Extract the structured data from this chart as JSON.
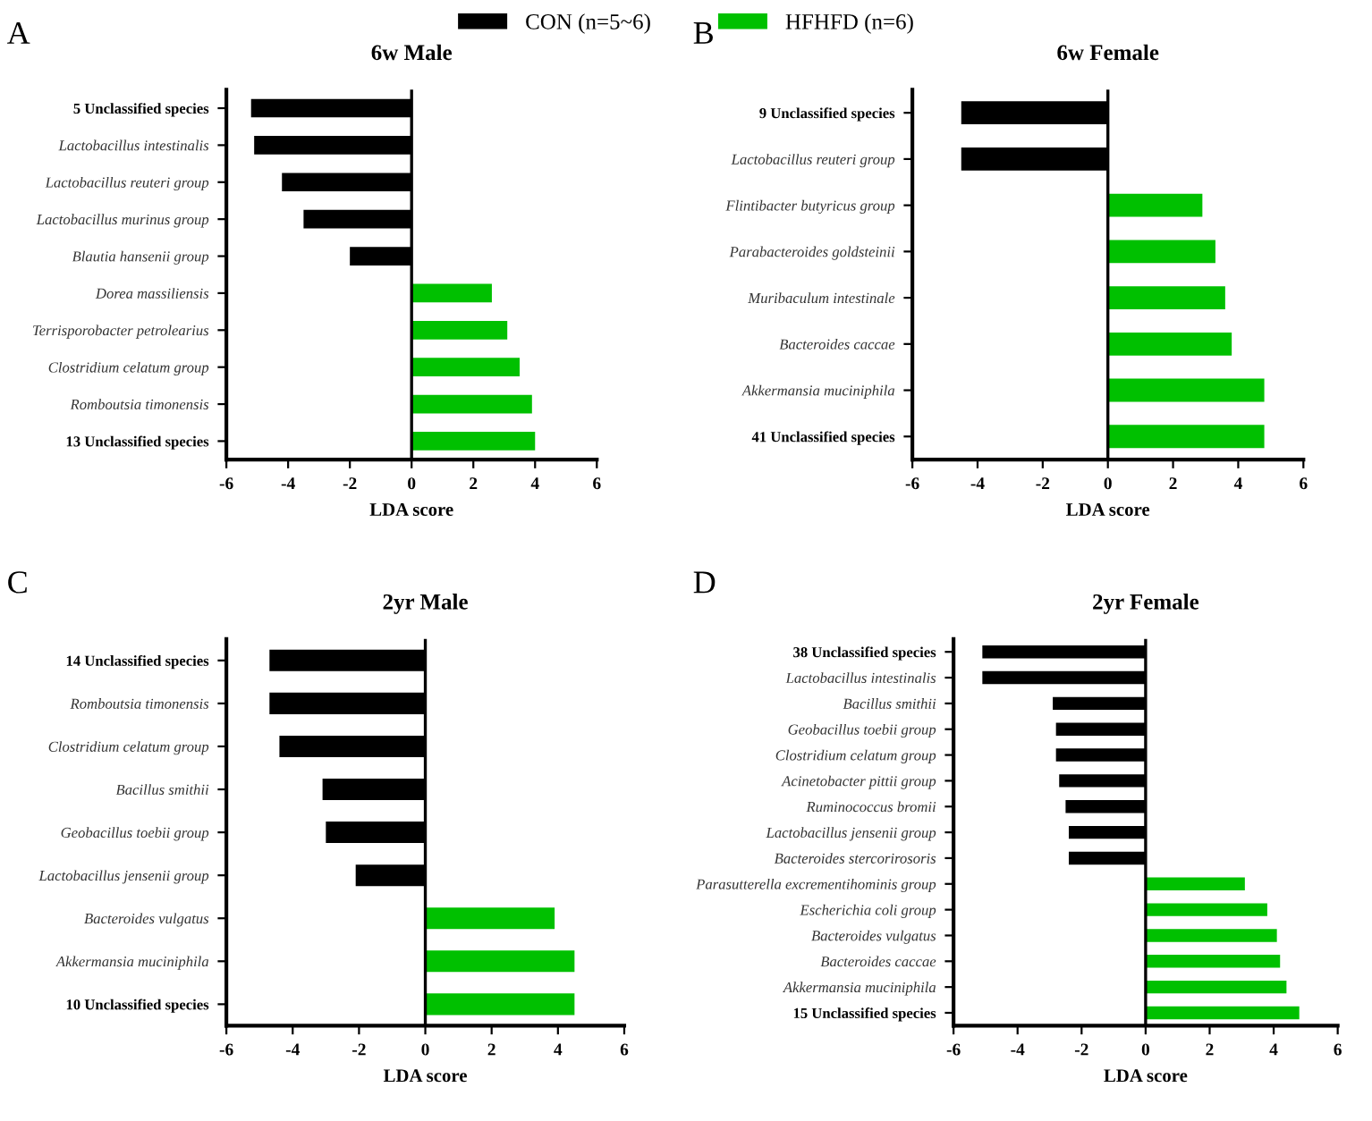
{
  "chart_data": [
    {
      "type": "bar",
      "orientation": "horizontal",
      "title": "6w Male",
      "xlabel": "LDA score",
      "annotations": [
        "A"
      ],
      "legend": "top",
      "xlim": [
        -6,
        6
      ],
      "xticks": [
        -6,
        -4,
        -2,
        0,
        2,
        4,
        6
      ],
      "grid": false,
      "ref_lines": [
        {
          "axis": "x",
          "value": 0,
          "color": "#000000"
        }
      ],
      "categories": [
        "5 Unclassified species",
        "Lactobacillus intestinalis",
        "Lactobacillus reuteri group",
        "Lactobacillus murinus group",
        "Blautia hansenii group",
        "Dorea massiliensis",
        "Terrisporobacter petrolearius",
        "Clostridium celatum group",
        "Romboutsia timonensis",
        "13 Unclassified species"
      ],
      "series": [
        {
          "name": "CON (n=5~6)",
          "color": "#000000",
          "values": [
            -5.2,
            -5.1,
            -4.2,
            -3.5,
            -2.0,
            null,
            null,
            null,
            null,
            null
          ]
        },
        {
          "name": "HFHFD (n=6)",
          "color": "#00c000",
          "values": [
            null,
            null,
            null,
            null,
            null,
            2.6,
            3.1,
            3.5,
            3.9,
            4.0
          ]
        }
      ]
    },
    {
      "type": "bar",
      "orientation": "horizontal",
      "title": "6w Female",
      "xlabel": "LDA score",
      "annotations": [
        "B"
      ],
      "xlim": [
        -6,
        6
      ],
      "xticks": [
        -6,
        -4,
        -2,
        0,
        2,
        4,
        6
      ],
      "grid": false,
      "ref_lines": [
        {
          "axis": "x",
          "value": 0,
          "color": "#000000"
        }
      ],
      "categories": [
        "9 Unclassified species",
        "Lactobacillus reuteri group",
        "Flintibacter butyricus group",
        "Parabacteroides goldsteinii",
        "Muribaculum intestinale",
        "Bacteroides caccae",
        "Akkermansia muciniphila",
        "41 Unclassified species"
      ],
      "series": [
        {
          "color": "#000000",
          "values": [
            -4.5,
            -4.5,
            null,
            null,
            null,
            null,
            null,
            null
          ]
        },
        {
          "color": "#00c000",
          "values": [
            null,
            null,
            2.9,
            3.3,
            3.6,
            3.8,
            4.8,
            4.8
          ]
        }
      ]
    },
    {
      "type": "bar",
      "orientation": "horizontal",
      "title": "2yr Male",
      "xlabel": "LDA score",
      "annotations": [
        "C"
      ],
      "xlim": [
        -6,
        6
      ],
      "xticks": [
        -6,
        -4,
        -2,
        0,
        2,
        4,
        6
      ],
      "grid": false,
      "ref_lines": [
        {
          "axis": "x",
          "value": 0,
          "color": "#000000"
        }
      ],
      "categories": [
        "14 Unclassified species",
        "Romboutsia timonensis",
        "Clostridium celatum group",
        "Bacillus smithii",
        "Geobacillus toebii group",
        "Lactobacillus jensenii group",
        "Bacteroides vulgatus",
        "Akkermansia muciniphila",
        "10 Unclassified species"
      ],
      "series": [
        {
          "color": "#000000",
          "values": [
            -4.7,
            -4.7,
            -4.4,
            -3.1,
            -3.0,
            -2.1,
            null,
            null,
            null
          ]
        },
        {
          "color": "#00c000",
          "values": [
            null,
            null,
            null,
            null,
            null,
            null,
            3.9,
            4.5,
            4.5
          ]
        }
      ]
    },
    {
      "type": "bar",
      "orientation": "horizontal",
      "title": "2yr Female",
      "xlabel": "LDA score",
      "annotations": [
        "D"
      ],
      "xlim": [
        -6,
        6
      ],
      "xticks": [
        -6,
        -4,
        -2,
        0,
        2,
        4,
        6
      ],
      "grid": false,
      "ref_lines": [
        {
          "axis": "x",
          "value": 0,
          "color": "#000000"
        }
      ],
      "categories": [
        "38 Unclassified species",
        "Lactobacillus intestinalis",
        "Bacillus smithii",
        "Geobacillus toebii group",
        "Clostridium celatum group",
        "Acinetobacter pittii group",
        "Ruminococcus bromii",
        "Lactobacillus jensenii group",
        "Bacteroides stercorirosoris",
        "Parasutterella excrementihominis group",
        "Escherichia coli group",
        "Bacteroides vulgatus",
        "Bacteroides caccae",
        "Akkermansia muciniphila",
        "15 Unclassified species"
      ],
      "series": [
        {
          "color": "#000000",
          "values": [
            -5.1,
            -5.1,
            -2.9,
            -2.8,
            -2.8,
            -2.7,
            -2.5,
            -2.4,
            -2.4,
            null,
            null,
            null,
            null,
            null,
            null
          ]
        },
        {
          "color": "#00c000",
          "values": [
            null,
            null,
            null,
            null,
            null,
            null,
            null,
            null,
            null,
            3.1,
            3.8,
            4.1,
            4.2,
            4.4,
            4.8
          ]
        }
      ]
    }
  ]
}
